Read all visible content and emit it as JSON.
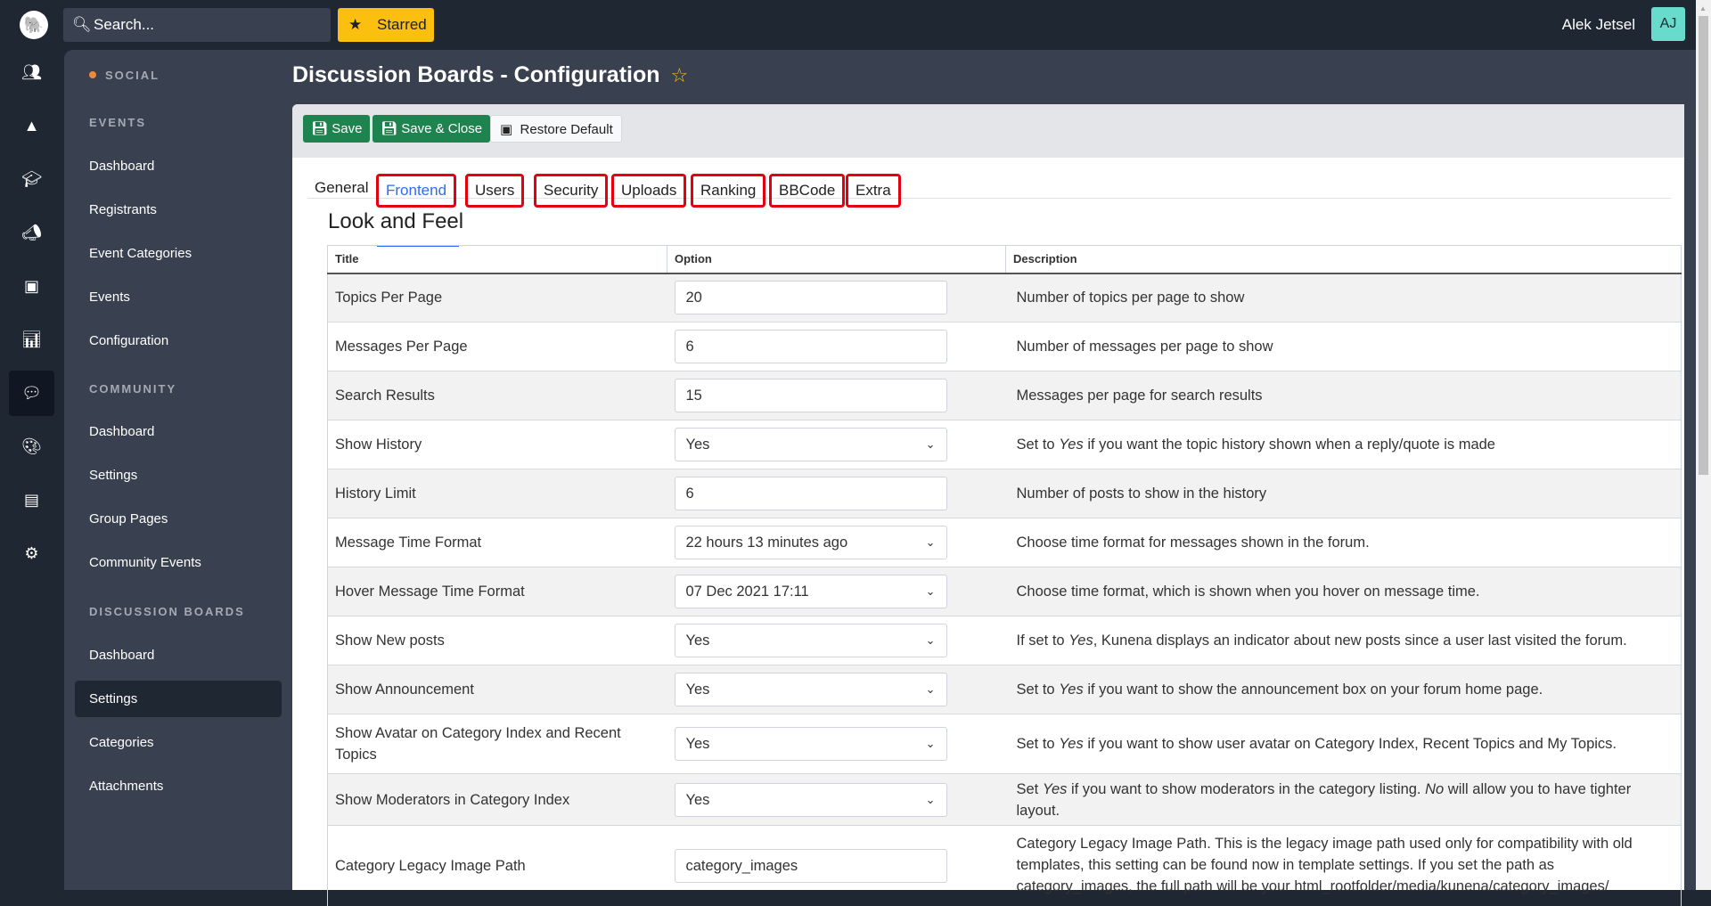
{
  "topbar": {
    "search_placeholder": "Search...",
    "starred_label": "Starred",
    "user_name": "Alek Jetsel",
    "user_initials": "AJ"
  },
  "rail": [
    "users-icon",
    "shapes-icon",
    "graduation-cap-icon",
    "megaphone-icon",
    "ticket-icon",
    "chart-icon",
    "comment-icon",
    "palette-icon",
    "window-icon",
    "gear-icon"
  ],
  "sidebar": {
    "social": "SOCIAL",
    "events_header": "EVENTS",
    "events": [
      "Dashboard",
      "Registrants",
      "Event Categories",
      "Events",
      "Configuration"
    ],
    "community_header": "COMMUNITY",
    "community": [
      "Dashboard",
      "Settings",
      "Group Pages",
      "Community Events"
    ],
    "discussion_header": "DISCUSSION BOARDS",
    "discussion": [
      "Dashboard",
      "Settings",
      "Categories",
      "Attachments"
    ],
    "active": "Settings"
  },
  "page": {
    "title": "Discussion Boards - Configuration"
  },
  "toolbar": {
    "save": "Save",
    "save_close": "Save & Close",
    "restore": "Restore Default"
  },
  "tabs": [
    "General",
    "Frontend",
    "Users",
    "Security",
    "Uploads",
    "Ranking",
    "BBCode",
    "Extra"
  ],
  "active_tab": "Frontend",
  "section_title": "Look and Feel",
  "table": {
    "headers": [
      "Title",
      "Option",
      "Description"
    ],
    "rows": [
      {
        "title": "Topics Per Page",
        "value": "20",
        "type": "text",
        "desc": "Number of topics per page to show"
      },
      {
        "title": "Messages Per Page",
        "value": "6",
        "type": "text",
        "desc": "Number of messages per page to show"
      },
      {
        "title": "Search Results",
        "value": "15",
        "type": "text",
        "desc": "Messages per page for search results"
      },
      {
        "title": "Show History",
        "value": "Yes",
        "type": "select",
        "desc": "Set to Yes if you want the topic history shown when a reply/quote is made"
      },
      {
        "title": "History Limit",
        "value": "6",
        "type": "text",
        "desc": "Number of posts to show in the history"
      },
      {
        "title": "Message Time Format",
        "value": "22 hours 13 minutes ago",
        "type": "select",
        "desc": "Choose time format for messages shown in the forum."
      },
      {
        "title": "Hover Message Time Format",
        "value": "07 Dec 2021 17:11",
        "type": "select",
        "desc": "Choose time format, which is shown when you hover on message time."
      },
      {
        "title": "Show New posts",
        "value": "Yes",
        "type": "select",
        "desc": "If set to Yes, Kunena displays an indicator about new posts since a user last visited the forum."
      },
      {
        "title": "Show Announcement",
        "value": "Yes",
        "type": "select",
        "desc": "Set to Yes if you want to show the announcement box on your forum home page."
      },
      {
        "title": "Show Avatar on Category Index and Recent Topics",
        "value": "Yes",
        "type": "select",
        "desc": "Set to Yes if you want to show user avatar on Category Index, Recent Topics and My Topics."
      },
      {
        "title": "Show Moderators in Category Index",
        "value": "Yes",
        "type": "select",
        "desc": "Set Yes if you want to show moderators in the category listing. No will allow you to have tighter layout."
      },
      {
        "title": "Category Legacy Image Path",
        "value": "category_images",
        "type": "text",
        "desc": "Category Legacy Image Path. This is the legacy image path used only for compatibility with old templates, this setting can be found now in template settings. If you set the path as category_images, the full path will be your html_rootfolder/media/kunena/category_images/"
      }
    ]
  }
}
